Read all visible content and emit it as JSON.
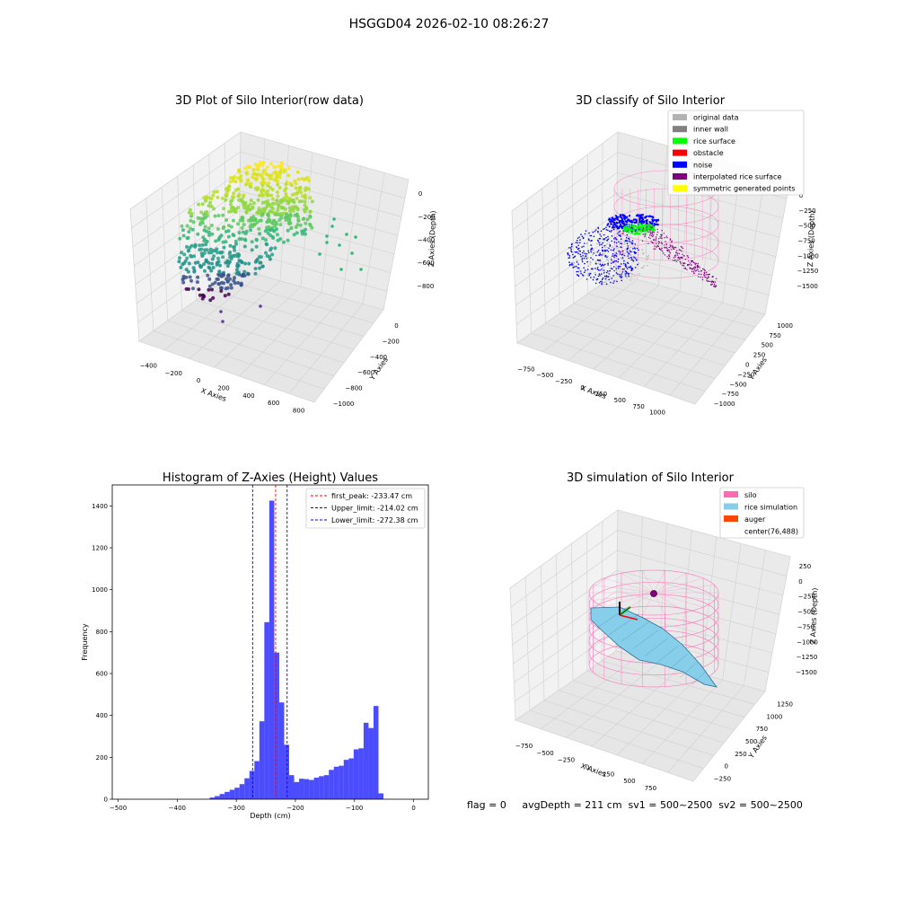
{
  "figure_title": "HSGGD04 2026-02-10 08:26:27",
  "status_line": "flag = 0     avgDepth = 211 cm  sv1 = 500~2500  sv2 = 500~2500",
  "chart_data": [
    {
      "type": "scatter",
      "projection": "3d",
      "title": "3D Plot of Silo Interior(row data)",
      "xlabel": "X Axies",
      "ylabel": "Y Axies",
      "zlabel": "Z Axies (Depth)",
      "xticks": [
        "−400",
        "−200",
        "0",
        "200",
        "400",
        "600",
        "800"
      ],
      "yticks": [
        "0",
        "−200",
        "−400",
        "−600",
        "−800",
        "−1000"
      ],
      "zticks": [
        "0",
        "−200",
        "−400",
        "−600",
        "−800"
      ],
      "xlim": [
        -480,
        900
      ],
      "ylim": [
        50,
        -1050
      ],
      "zlim": [
        -1000,
        50
      ],
      "colormap": "viridis (by depth)",
      "grid": true
    },
    {
      "type": "scatter",
      "projection": "3d",
      "title": "3D classify of Silo Interior",
      "xlabel": "X Axies",
      "ylabel": "Y Axies",
      "zlabel": "Z Axies (Depth)",
      "xticks": [
        "−750",
        "−500",
        "−250",
        "0",
        "250",
        "500",
        "750",
        "1000"
      ],
      "yticks": [
        "1000",
        "750",
        "500",
        "250",
        "0",
        "−250",
        "−500",
        "−750",
        "−1000"
      ],
      "zticks": [
        "0",
        "−250",
        "−500",
        "−750",
        "−1000",
        "−1250",
        "−1500"
      ],
      "legend": [
        {
          "label": "original data",
          "color": "#b3b3b3"
        },
        {
          "label": "inner wall",
          "color": "#808080"
        },
        {
          "label": "rice surface",
          "color": "#00ff00"
        },
        {
          "label": "obstacle",
          "color": "#ff0000"
        },
        {
          "label": "noise",
          "color": "#0000ff"
        },
        {
          "label": "interpolated rice surface",
          "color": "#800080"
        },
        {
          "label": "symmetric generated points",
          "color": "#ffff00"
        }
      ],
      "legend_loc": "upper right",
      "grid": true
    },
    {
      "type": "bar",
      "title": "Histogram of Z-Axies (Height) Values",
      "xlabel": "Depth (cm)",
      "ylabel": "Frequency",
      "xlim": [
        -510,
        25
      ],
      "ylim": [
        0,
        1500
      ],
      "xticks": [
        -500,
        -400,
        -300,
        -200,
        -100,
        0
      ],
      "yticks": [
        0,
        200,
        400,
        600,
        800,
        1000,
        1200,
        1400
      ],
      "bar_color": "#0000ff",
      "bin_width": 8.4,
      "bin_starts": [
        -345,
        -336.6,
        -328.2,
        -319.8,
        -311.4,
        -303,
        -294.6,
        -286.2,
        -277.8,
        -269.4,
        -261,
        -252.6,
        -244.2,
        -235.8,
        -227.4,
        -219,
        -210.6,
        -202.2,
        -193.8,
        -185.4,
        -177,
        -168.6,
        -160.2,
        -151.8,
        -143.4,
        -135,
        -126.6,
        -118.2,
        -109.8,
        -101.4,
        -93,
        -84.6,
        -76.2,
        -67.8,
        -59.4,
        -51,
        -42.6,
        -34.2,
        -25.8,
        -17.4,
        -9,
        -0.6
      ],
      "values": [
        8,
        15,
        25,
        35,
        45,
        55,
        72,
        100,
        135,
        182,
        372,
        845,
        1425,
        700,
        462,
        260,
        115,
        82,
        98,
        96,
        92,
        103,
        110,
        115,
        140,
        155,
        160,
        188,
        195,
        238,
        243,
        365,
        340,
        445,
        28,
        0,
        0,
        0,
        0,
        0,
        0,
        0
      ],
      "vlines": [
        {
          "label": "first_peak: -233.47 cm",
          "x": -233.47,
          "color": "#ff0000"
        },
        {
          "label": "Upper_limit: -214.02 cm",
          "x": -214.02,
          "color": "#0000ff"
        },
        {
          "label": "Lower_limit: -272.38 cm",
          "x": -272.38,
          "color": "#0000ff"
        }
      ],
      "legend_loc": "upper right"
    },
    {
      "type": "surface",
      "projection": "3d",
      "title": "3D simulation of Silo Interior",
      "xlabel": "X Axies",
      "ylabel": "Y Axies",
      "zlabel": "Z Axies (Depth)",
      "xticks": [
        "−750",
        "−500",
        "−250",
        "0",
        "250",
        "500",
        "750"
      ],
      "yticks": [
        "1250",
        "1000",
        "750",
        "500",
        "250",
        "0",
        "−250"
      ],
      "zticks": [
        "250",
        "0",
        "−250",
        "−500",
        "−750",
        "−1000",
        "−1250",
        "−1500"
      ],
      "legend": [
        {
          "label": "silo",
          "color": "#ff69b4"
        },
        {
          "label": "rice simulation",
          "color": "#87ceeb"
        },
        {
          "label": "auger",
          "color": "#ff4500"
        },
        {
          "label": "center(76,488)",
          "color": ""
        }
      ],
      "legend_loc": "upper right",
      "grid": true
    }
  ]
}
